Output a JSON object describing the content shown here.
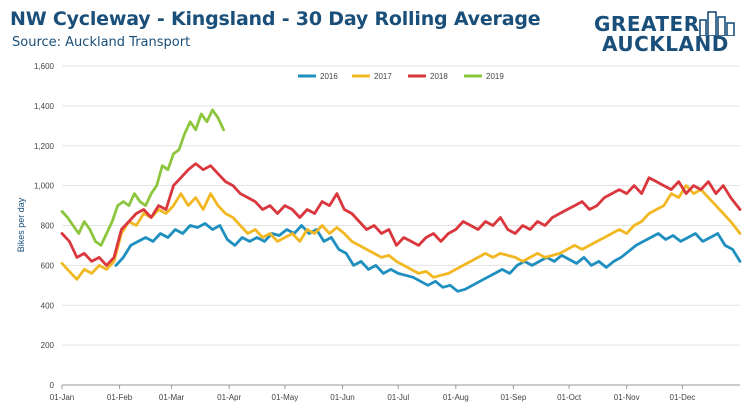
{
  "title": "NW Cycleway - Kingsland - 30 Day Rolling Average",
  "subtitle": "Source: Auckland Transport",
  "logo": {
    "line1": "GREATER",
    "line2": "AUCKLAND",
    "name": "greater-auckland-logo"
  },
  "chart_data": {
    "type": "line",
    "title": "NW Cycleway - Kingsland - 30 Day Rolling Average",
    "subtitle": "Source: Auckland Transport",
    "ylabel": "Bikes per day",
    "xlabel": "",
    "ylim": [
      0,
      1600
    ],
    "yticks": [
      0,
      200,
      400,
      600,
      800,
      1000,
      1200,
      1400,
      1600
    ],
    "ytick_labels": [
      "0",
      "200",
      "400",
      "600",
      "800",
      "1,000",
      "1,200",
      "1,400",
      "1,600"
    ],
    "xlim": [
      1,
      366
    ],
    "xticks": [
      1,
      32,
      60,
      91,
      121,
      152,
      182,
      213,
      244,
      274,
      305,
      335
    ],
    "xtick_labels": [
      "01-Jan",
      "01-Feb",
      "01-Mar",
      "01-Apr",
      "01-May",
      "01-Jun",
      "01-Jul",
      "01-Aug",
      "01-Sep",
      "01-Oct",
      "01-Nov",
      "01-Dec"
    ],
    "x_unit": "day of year",
    "grid": "horizontal",
    "legend_position": "top",
    "series": [
      {
        "name": "2016",
        "color": "#1f8fbf",
        "x": [
          30,
          34,
          38,
          42,
          46,
          50,
          54,
          58,
          62,
          66,
          70,
          74,
          78,
          82,
          86,
          90,
          94,
          98,
          102,
          106,
          110,
          114,
          118,
          122,
          126,
          130,
          134,
          138,
          142,
          146,
          150,
          154,
          158,
          162,
          166,
          170,
          174,
          178,
          182,
          186,
          190,
          194,
          198,
          202,
          206,
          210,
          214,
          218,
          222,
          226,
          230,
          234,
          238,
          242,
          246,
          250,
          254,
          258,
          262,
          266,
          270,
          274,
          278,
          282,
          286,
          290,
          294,
          298,
          302,
          306,
          310,
          314,
          318,
          322,
          326,
          330,
          334,
          338,
          342,
          346,
          350,
          354,
          358,
          362,
          366
        ],
        "values": [
          600,
          640,
          700,
          720,
          740,
          720,
          760,
          740,
          780,
          760,
          800,
          790,
          810,
          780,
          800,
          730,
          700,
          740,
          720,
          740,
          720,
          760,
          750,
          780,
          760,
          800,
          760,
          780,
          720,
          740,
          680,
          660,
          600,
          620,
          580,
          600,
          560,
          580,
          560,
          550,
          540,
          520,
          500,
          520,
          490,
          500,
          470,
          480,
          500,
          520,
          540,
          560,
          580,
          560,
          600,
          620,
          600,
          620,
          640,
          620,
          650,
          630,
          610,
          640,
          600,
          620,
          590,
          620,
          640,
          670,
          700,
          720,
          740,
          760,
          730,
          750,
          720,
          740,
          760,
          720,
          740,
          760,
          700,
          680,
          620
        ]
      },
      {
        "name": "2017",
        "color": "#f2b824",
        "x": [
          1,
          5,
          9,
          13,
          17,
          21,
          25,
          29,
          33,
          37,
          41,
          45,
          49,
          53,
          57,
          61,
          65,
          69,
          73,
          77,
          81,
          85,
          89,
          93,
          97,
          101,
          105,
          109,
          113,
          117,
          121,
          125,
          129,
          133,
          137,
          141,
          145,
          149,
          153,
          157,
          161,
          165,
          169,
          173,
          177,
          181,
          185,
          189,
          193,
          197,
          201,
          205,
          209,
          213,
          217,
          221,
          225,
          229,
          233,
          237,
          241,
          245,
          249,
          253,
          257,
          261,
          265,
          269,
          273,
          277,
          281,
          285,
          289,
          293,
          297,
          301,
          305,
          309,
          313,
          317,
          321,
          325,
          329,
          333,
          337,
          341,
          345,
          349,
          353,
          357,
          361,
          366
        ],
        "values": [
          610,
          570,
          530,
          580,
          560,
          600,
          580,
          620,
          760,
          820,
          800,
          860,
          840,
          880,
          860,
          900,
          960,
          900,
          940,
          880,
          960,
          900,
          860,
          840,
          800,
          760,
          780,
          740,
          760,
          720,
          740,
          760,
          720,
          780,
          760,
          800,
          760,
          790,
          760,
          720,
          700,
          680,
          660,
          640,
          650,
          620,
          600,
          580,
          560,
          570,
          540,
          550,
          560,
          580,
          600,
          620,
          640,
          660,
          640,
          660,
          650,
          640,
          620,
          640,
          660,
          640,
          650,
          660,
          680,
          700,
          680,
          700,
          720,
          740,
          760,
          780,
          760,
          800,
          820,
          860,
          880,
          900,
          960,
          940,
          1000,
          960,
          980,
          940,
          900,
          860,
          820,
          760
        ]
      },
      {
        "name": "2018",
        "color": "#d9373d",
        "x": [
          1,
          5,
          9,
          13,
          17,
          21,
          25,
          29,
          33,
          37,
          41,
          45,
          49,
          53,
          57,
          61,
          65,
          69,
          73,
          77,
          81,
          85,
          89,
          93,
          97,
          101,
          105,
          109,
          113,
          117,
          121,
          125,
          129,
          133,
          137,
          141,
          145,
          149,
          153,
          157,
          161,
          165,
          169,
          173,
          177,
          181,
          185,
          189,
          193,
          197,
          201,
          205,
          209,
          213,
          217,
          221,
          225,
          229,
          233,
          237,
          241,
          245,
          249,
          253,
          257,
          261,
          265,
          269,
          273,
          277,
          281,
          285,
          289,
          293,
          297,
          301,
          305,
          309,
          313,
          317,
          321,
          325,
          329,
          333,
          337,
          341,
          345,
          349,
          353,
          357,
          361,
          366
        ],
        "values": [
          760,
          720,
          640,
          660,
          620,
          640,
          600,
          640,
          780,
          820,
          860,
          880,
          840,
          900,
          880,
          1000,
          1040,
          1080,
          1110,
          1080,
          1100,
          1060,
          1020,
          1000,
          960,
          940,
          920,
          880,
          900,
          860,
          900,
          880,
          840,
          880,
          860,
          920,
          900,
          960,
          880,
          860,
          820,
          780,
          800,
          760,
          780,
          700,
          740,
          720,
          700,
          740,
          760,
          720,
          760,
          780,
          820,
          800,
          780,
          820,
          800,
          840,
          780,
          760,
          800,
          780,
          820,
          800,
          840,
          860,
          880,
          900,
          920,
          880,
          900,
          940,
          960,
          980,
          960,
          1000,
          960,
          1040,
          1020,
          1000,
          980,
          1020,
          960,
          1000,
          980,
          1020,
          960,
          1000,
          940,
          880
        ]
      },
      {
        "name": "2019",
        "color": "#8cc63f",
        "x": [
          1,
          4,
          7,
          10,
          13,
          16,
          19,
          22,
          25,
          28,
          31,
          34,
          37,
          40,
          43,
          46,
          49,
          52,
          55,
          58,
          61,
          64,
          67,
          70,
          73,
          76,
          79,
          82,
          85,
          88
        ],
        "values": [
          870,
          840,
          800,
          760,
          820,
          780,
          720,
          700,
          760,
          820,
          900,
          920,
          900,
          960,
          920,
          900,
          960,
          1000,
          1100,
          1080,
          1160,
          1180,
          1260,
          1320,
          1280,
          1360,
          1320,
          1380,
          1340,
          1280
        ]
      }
    ]
  }
}
